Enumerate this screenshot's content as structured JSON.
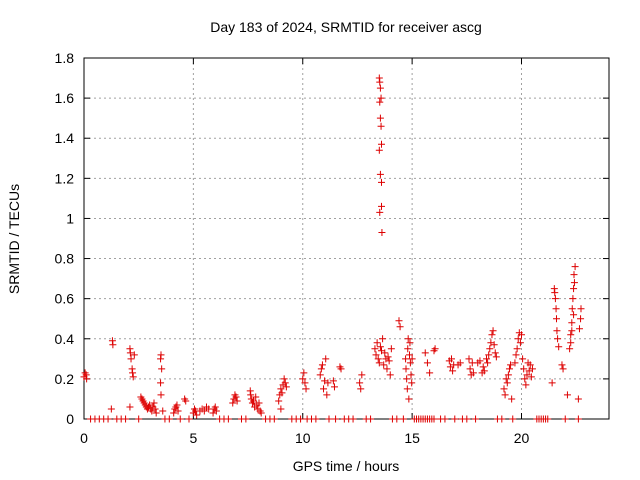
{
  "chart_data": {
    "type": "scatter",
    "title": "Day 183 of 2024, SRMTID for receiver ascg",
    "xlabel": "GPS time / hours",
    "ylabel": "SRMTID / TECUs",
    "xlim": [
      0,
      24
    ],
    "ylim": [
      0,
      1.8
    ],
    "xticks": [
      0,
      5,
      10,
      15,
      20
    ],
    "yticks": [
      0,
      0.2,
      0.4,
      0.6,
      0.8,
      1,
      1.2,
      1.4,
      1.6,
      1.8
    ],
    "grid": true,
    "marker": "+",
    "series": [
      {
        "name": "SRMTID",
        "color": "#dd0000",
        "points": [
          [
            0.0,
            0.21
          ],
          [
            0.05,
            0.23
          ],
          [
            0.1,
            0.22
          ],
          [
            0.12,
            0.2
          ],
          [
            0.3,
            0.0
          ],
          [
            0.5,
            0.0
          ],
          [
            0.7,
            0.0
          ],
          [
            0.9,
            0.0
          ],
          [
            1.1,
            0.0
          ],
          [
            1.25,
            0.05
          ],
          [
            1.3,
            0.39
          ],
          [
            1.32,
            0.37
          ],
          [
            1.5,
            0.0
          ],
          [
            1.7,
            0.0
          ],
          [
            1.9,
            0.0
          ],
          [
            2.1,
            0.35
          ],
          [
            2.12,
            0.33
          ],
          [
            2.15,
            0.3
          ],
          [
            2.2,
            0.25
          ],
          [
            2.22,
            0.23
          ],
          [
            2.25,
            0.21
          ],
          [
            2.3,
            0.32
          ],
          [
            2.1,
            0.06
          ],
          [
            2.5,
            0.0
          ],
          [
            2.6,
            0.11
          ],
          [
            2.65,
            0.1
          ],
          [
            2.7,
            0.09
          ],
          [
            2.75,
            0.08
          ],
          [
            2.8,
            0.07
          ],
          [
            2.85,
            0.06
          ],
          [
            2.9,
            0.05
          ],
          [
            2.95,
            0.06
          ],
          [
            3.0,
            0.07
          ],
          [
            3.05,
            0.05
          ],
          [
            3.1,
            0.04
          ],
          [
            3.15,
            0.06
          ],
          [
            3.2,
            0.08
          ],
          [
            3.25,
            0.05
          ],
          [
            3.3,
            0.03
          ],
          [
            3.5,
            0.3
          ],
          [
            3.52,
            0.32
          ],
          [
            3.55,
            0.25
          ],
          [
            3.5,
            0.18
          ],
          [
            3.52,
            0.12
          ],
          [
            3.6,
            0.04
          ],
          [
            3.7,
            0.0
          ],
          [
            3.9,
            0.0
          ],
          [
            4.1,
            0.03
          ],
          [
            4.15,
            0.05
          ],
          [
            4.2,
            0.06
          ],
          [
            4.25,
            0.07
          ],
          [
            4.3,
            0.04
          ],
          [
            4.4,
            0.0
          ],
          [
            4.6,
            0.1
          ],
          [
            4.65,
            0.09
          ],
          [
            4.8,
            0.0
          ],
          [
            5.0,
            0.03
          ],
          [
            5.05,
            0.05
          ],
          [
            5.1,
            0.04
          ],
          [
            5.15,
            0.02
          ],
          [
            5.3,
            0.04
          ],
          [
            5.4,
            0.05
          ],
          [
            5.5,
            0.04
          ],
          [
            5.6,
            0.06
          ],
          [
            5.7,
            0.05
          ],
          [
            5.9,
            0.03
          ],
          [
            5.95,
            0.05
          ],
          [
            6.0,
            0.06
          ],
          [
            6.05,
            0.04
          ],
          [
            6.2,
            0.0
          ],
          [
            6.4,
            0.0
          ],
          [
            6.6,
            0.0
          ],
          [
            6.8,
            0.08
          ],
          [
            6.85,
            0.1
          ],
          [
            6.9,
            0.12
          ],
          [
            6.95,
            0.11
          ],
          [
            7.0,
            0.09
          ],
          [
            7.2,
            0.0
          ],
          [
            7.4,
            0.0
          ],
          [
            7.6,
            0.14
          ],
          [
            7.62,
            0.12
          ],
          [
            7.65,
            0.1
          ],
          [
            7.7,
            0.08
          ],
          [
            7.75,
            0.09
          ],
          [
            7.8,
            0.06
          ],
          [
            7.85,
            0.11
          ],
          [
            7.9,
            0.07
          ],
          [
            7.95,
            0.05
          ],
          [
            8.0,
            0.08
          ],
          [
            8.05,
            0.04
          ],
          [
            8.1,
            0.03
          ],
          [
            8.3,
            0.0
          ],
          [
            8.5,
            0.0
          ],
          [
            8.7,
            0.0
          ],
          [
            8.9,
            0.09
          ],
          [
            8.95,
            0.12
          ],
          [
            9.0,
            0.15
          ],
          [
            9.05,
            0.13
          ],
          [
            9.1,
            0.17
          ],
          [
            9.15,
            0.2
          ],
          [
            9.2,
            0.18
          ],
          [
            9.25,
            0.16
          ],
          [
            9.0,
            0.05
          ],
          [
            9.5,
            0.0
          ],
          [
            9.7,
            0.0
          ],
          [
            9.9,
            0.0
          ],
          [
            10.0,
            0.2
          ],
          [
            10.05,
            0.23
          ],
          [
            10.1,
            0.18
          ],
          [
            10.15,
            0.15
          ],
          [
            10.2,
            0.0
          ],
          [
            10.4,
            0.0
          ],
          [
            10.6,
            0.0
          ],
          [
            10.8,
            0.22
          ],
          [
            10.85,
            0.25
          ],
          [
            10.9,
            0.27
          ],
          [
            10.95,
            0.15
          ],
          [
            11.0,
            0.19
          ],
          [
            11.05,
            0.3
          ],
          [
            11.1,
            0.12
          ],
          [
            11.15,
            0.18
          ],
          [
            11.2,
            0.0
          ],
          [
            11.4,
            0.19
          ],
          [
            11.45,
            0.16
          ],
          [
            11.5,
            0.0
          ],
          [
            11.7,
            0.26
          ],
          [
            11.75,
            0.25
          ],
          [
            11.9,
            0.0
          ],
          [
            12.1,
            0.0
          ],
          [
            12.3,
            0.0
          ],
          [
            12.6,
            0.18
          ],
          [
            12.65,
            0.15
          ],
          [
            12.7,
            0.22
          ],
          [
            12.9,
            0.0
          ],
          [
            13.1,
            0.0
          ],
          [
            13.3,
            0.35
          ],
          [
            13.35,
            0.32
          ],
          [
            13.4,
            0.38
          ],
          [
            13.45,
            0.3
          ],
          [
            13.5,
            0.28
          ],
          [
            13.55,
            0.36
          ],
          [
            13.6,
            0.34
          ],
          [
            13.65,
            0.4
          ],
          [
            13.7,
            0.27
          ],
          [
            13.75,
            0.33
          ],
          [
            13.8,
            0.3
          ],
          [
            13.85,
            0.25
          ],
          [
            13.9,
            0.31
          ],
          [
            13.95,
            0.29
          ],
          [
            14.0,
            0.22
          ],
          [
            14.05,
            0.35
          ],
          [
            14.1,
            0.0
          ],
          [
            13.5,
            1.7
          ],
          [
            13.52,
            1.68
          ],
          [
            13.55,
            1.65
          ],
          [
            13.58,
            1.6
          ],
          [
            13.52,
            1.58
          ],
          [
            13.55,
            1.5
          ],
          [
            13.58,
            1.46
          ],
          [
            13.6,
            1.37
          ],
          [
            13.5,
            1.34
          ],
          [
            13.55,
            1.22
          ],
          [
            13.6,
            1.18
          ],
          [
            13.52,
            1.03
          ],
          [
            13.6,
            1.06
          ],
          [
            13.62,
            0.93
          ],
          [
            14.3,
            0.0
          ],
          [
            14.4,
            0.49
          ],
          [
            14.45,
            0.46
          ],
          [
            14.6,
            0.0
          ],
          [
            14.7,
            0.3
          ],
          [
            14.72,
            0.25
          ],
          [
            14.75,
            0.2
          ],
          [
            14.78,
            0.15
          ],
          [
            14.8,
            0.35
          ],
          [
            14.82,
            0.4
          ],
          [
            14.85,
            0.1
          ],
          [
            14.88,
            0.32
          ],
          [
            14.9,
            0.38
          ],
          [
            14.92,
            0.28
          ],
          [
            14.95,
            0.22
          ],
          [
            14.98,
            0.18
          ],
          [
            15.0,
            0.3
          ],
          [
            15.1,
            0.0
          ],
          [
            15.2,
            0.0
          ],
          [
            15.3,
            0.0
          ],
          [
            15.4,
            0.0
          ],
          [
            15.5,
            0.0
          ],
          [
            15.6,
            0.0
          ],
          [
            15.7,
            0.0
          ],
          [
            15.8,
            0.0
          ],
          [
            15.9,
            0.0
          ],
          [
            16.0,
            0.0
          ],
          [
            15.6,
            0.33
          ],
          [
            15.7,
            0.28
          ],
          [
            15.8,
            0.23
          ],
          [
            16.0,
            0.34
          ],
          [
            16.05,
            0.35
          ],
          [
            16.3,
            0.0
          ],
          [
            16.5,
            0.0
          ],
          [
            16.7,
            0.29
          ],
          [
            16.75,
            0.26
          ],
          [
            16.8,
            0.3
          ],
          [
            16.85,
            0.24
          ],
          [
            16.9,
            0.27
          ],
          [
            16.95,
            0.0
          ],
          [
            17.1,
            0.27
          ],
          [
            17.2,
            0.28
          ],
          [
            17.3,
            0.0
          ],
          [
            17.5,
            0.0
          ],
          [
            17.6,
            0.3
          ],
          [
            17.65,
            0.25
          ],
          [
            17.7,
            0.22
          ],
          [
            17.75,
            0.28
          ],
          [
            17.8,
            0.23
          ],
          [
            17.9,
            0.0
          ],
          [
            18.0,
            0.28
          ],
          [
            18.1,
            0.29
          ],
          [
            18.2,
            0.23
          ],
          [
            18.25,
            0.26
          ],
          [
            18.3,
            0.24
          ],
          [
            18.4,
            0.3
          ],
          [
            18.45,
            0.28
          ],
          [
            18.5,
            0.32
          ],
          [
            18.55,
            0.35
          ],
          [
            18.6,
            0.38
          ],
          [
            18.65,
            0.42
          ],
          [
            18.7,
            0.44
          ],
          [
            18.75,
            0.37
          ],
          [
            18.8,
            0.33
          ],
          [
            18.85,
            0.31
          ],
          [
            18.9,
            0.0
          ],
          [
            19.1,
            0.0
          ],
          [
            19.2,
            0.15
          ],
          [
            19.25,
            0.12
          ],
          [
            19.3,
            0.2
          ],
          [
            19.35,
            0.18
          ],
          [
            19.4,
            0.22
          ],
          [
            19.45,
            0.25
          ],
          [
            19.5,
            0.27
          ],
          [
            19.55,
            0.1
          ],
          [
            19.6,
            0.0
          ],
          [
            19.7,
            0.28
          ],
          [
            19.75,
            0.32
          ],
          [
            19.8,
            0.35
          ],
          [
            19.85,
            0.4
          ],
          [
            19.9,
            0.43
          ],
          [
            19.95,
            0.38
          ],
          [
            20.0,
            0.42
          ],
          [
            20.05,
            0.3
          ],
          [
            20.1,
            0.25
          ],
          [
            20.15,
            0.2
          ],
          [
            20.2,
            0.17
          ],
          [
            20.25,
            0.22
          ],
          [
            20.3,
            0.28
          ],
          [
            20.35,
            0.24
          ],
          [
            20.4,
            0.27
          ],
          [
            20.45,
            0.21
          ],
          [
            20.5,
            0.25
          ],
          [
            20.7,
            0.0
          ],
          [
            20.8,
            0.0
          ],
          [
            20.9,
            0.0
          ],
          [
            21.0,
            0.0
          ],
          [
            21.1,
            0.0
          ],
          [
            21.2,
            0.0
          ],
          [
            21.4,
            0.18
          ],
          [
            21.5,
            0.65
          ],
          [
            21.52,
            0.63
          ],
          [
            21.55,
            0.6
          ],
          [
            21.58,
            0.55
          ],
          [
            21.6,
            0.5
          ],
          [
            21.62,
            0.44
          ],
          [
            21.65,
            0.4
          ],
          [
            21.7,
            0.36
          ],
          [
            21.85,
            0.27
          ],
          [
            21.9,
            0.25
          ],
          [
            22.0,
            0.0
          ],
          [
            22.1,
            0.12
          ],
          [
            22.2,
            0.35
          ],
          [
            22.25,
            0.42
          ],
          [
            22.3,
            0.48
          ],
          [
            22.32,
            0.55
          ],
          [
            22.35,
            0.6
          ],
          [
            22.38,
            0.65
          ],
          [
            22.4,
            0.72
          ],
          [
            22.45,
            0.76
          ],
          [
            22.42,
            0.68
          ],
          [
            22.38,
            0.52
          ],
          [
            22.3,
            0.44
          ],
          [
            22.25,
            0.38
          ],
          [
            22.6,
            0.1
          ],
          [
            22.65,
            0.45
          ],
          [
            22.7,
            0.5
          ],
          [
            22.72,
            0.55
          ],
          [
            22.6,
            0.0
          ]
        ]
      }
    ]
  }
}
